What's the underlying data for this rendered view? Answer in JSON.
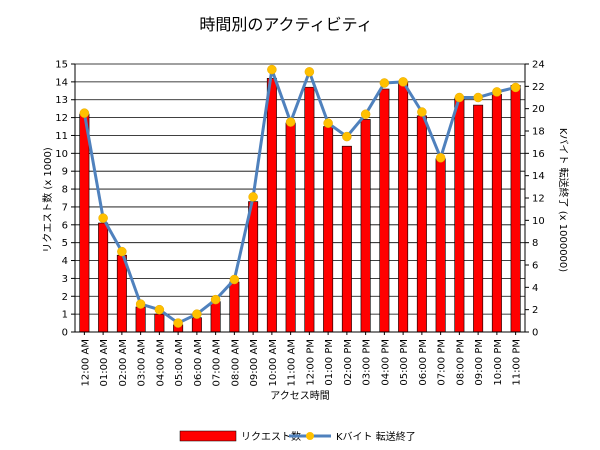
{
  "chart_data": {
    "type": "bar",
    "title": "時間別のアクティビティ",
    "xlabel": "アクセス時間",
    "ylabel": "リクエスト数 (x 1000)",
    "y2label": "Kバイト 転送終了 (x 1000000)",
    "categories": [
      "12:00 AM",
      "01:00 AM",
      "02:00 AM",
      "03:00 AM",
      "04:00 AM",
      "05:00 AM",
      "06:00 AM",
      "07:00 AM",
      "08:00 AM",
      "09:00 AM",
      "10:00 AM",
      "11:00 AM",
      "12:00 PM",
      "01:00 PM",
      "02:00 PM",
      "03:00 PM",
      "04:00 PM",
      "05:00 PM",
      "06:00 PM",
      "07:00 PM",
      "08:00 PM",
      "09:00 PM",
      "10:00 PM",
      "11:00 PM"
    ],
    "ylim": [
      0,
      15
    ],
    "y2lim": [
      0,
      24
    ],
    "yticks": [
      "0",
      "1",
      "2",
      "3",
      "4",
      "5",
      "6",
      "7",
      "8",
      "9",
      "10",
      "11",
      "12",
      "13",
      "14",
      "15"
    ],
    "y2ticks": [
      "0",
      "2",
      "4",
      "6",
      "8",
      "10",
      "12",
      "14",
      "16",
      "18",
      "20",
      "22",
      "24"
    ],
    "grid": true,
    "legend_position": "bottom",
    "series": [
      {
        "name": "リクエスト数",
        "type": "bar",
        "axis": "left",
        "color": "#ff0000",
        "values": [
          12.2,
          6.1,
          4.3,
          1.4,
          1.0,
          0.4,
          0.8,
          1.7,
          2.8,
          7.3,
          14.2,
          11.7,
          13.7,
          11.5,
          10.4,
          11.9,
          13.6,
          14.0,
          12.1,
          9.7,
          13.1,
          12.7,
          13.3,
          13.8
        ]
      },
      {
        "name": "Kバイト 転送終了",
        "type": "line",
        "axis": "right",
        "color": "#4f81bd",
        "marker_color": "#ffc000",
        "values": [
          19.6,
          10.2,
          7.2,
          2.5,
          2.0,
          0.8,
          1.6,
          2.9,
          4.7,
          12.1,
          23.5,
          18.8,
          23.3,
          18.7,
          17.5,
          19.5,
          22.3,
          22.4,
          19.7,
          15.6,
          21.0,
          21.0,
          21.5,
          21.9
        ]
      }
    ]
  }
}
